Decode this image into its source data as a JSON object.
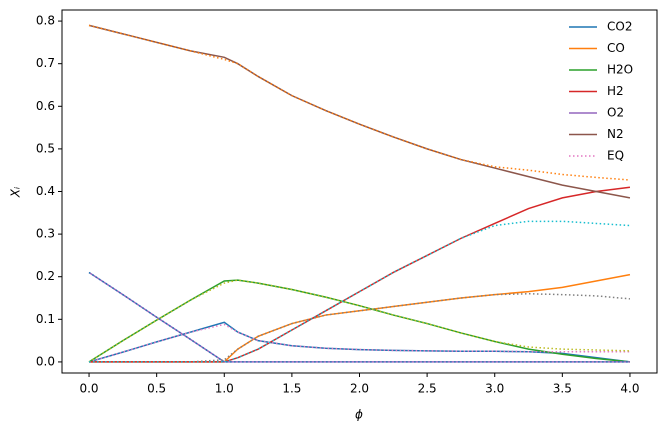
{
  "chart_data": {
    "type": "line",
    "x_label": "ϕ",
    "y_label": "Xᵢ",
    "x": [
      0,
      0.25,
      0.5,
      0.75,
      1.0,
      1.1,
      1.25,
      1.5,
      1.75,
      2.0,
      2.25,
      2.5,
      2.75,
      3.0,
      3.25,
      3.5,
      3.75,
      4.0
    ],
    "series": [
      {
        "name": "CO2",
        "color": "#1f77b4",
        "values": [
          0,
          0.023,
          0.047,
          0.07,
          0.093,
          0.07,
          0.05,
          0.038,
          0.032,
          0.029,
          0.027,
          0.026,
          0.025,
          0.025,
          0.024,
          0.02,
          0.01,
          0
        ]
      },
      {
        "name": "CO",
        "color": "#ff7f0e",
        "values": [
          0,
          0,
          0,
          0,
          0,
          0.03,
          0.06,
          0.09,
          0.11,
          0.12,
          0.13,
          0.14,
          0.15,
          0.158,
          0.165,
          0.175,
          0.19,
          0.205
        ]
      },
      {
        "name": "H2O",
        "color": "#2ca02c",
        "values": [
          0,
          0.05,
          0.098,
          0.145,
          0.19,
          0.192,
          0.185,
          0.17,
          0.152,
          0.132,
          0.11,
          0.09,
          0.068,
          0.048,
          0.03,
          0.018,
          0.008,
          0
        ]
      },
      {
        "name": "H2",
        "color": "#d62728",
        "values": [
          0,
          0,
          0,
          0,
          0,
          0.01,
          0.03,
          0.075,
          0.12,
          0.165,
          0.21,
          0.25,
          0.29,
          0.325,
          0.36,
          0.385,
          0.4,
          0.41
        ]
      },
      {
        "name": "O2",
        "color": "#9467bd",
        "values": [
          0.21,
          0.158,
          0.105,
          0.053,
          0,
          0,
          0,
          0,
          0,
          0,
          0,
          0,
          0,
          0,
          0,
          0,
          0,
          0
        ]
      },
      {
        "name": "N2",
        "color": "#8c564b",
        "values": [
          0.79,
          0.77,
          0.75,
          0.73,
          0.715,
          0.7,
          0.67,
          0.625,
          0.59,
          0.558,
          0.528,
          0.5,
          0.475,
          0.455,
          0.435,
          0.415,
          0.4,
          0.385
        ]
      }
    ],
    "equilibrium": {
      "name": "EQ",
      "style": "dotted",
      "lines": [
        {
          "color": "#e377c2",
          "values": [
            0,
            0.023,
            0.047,
            0.07,
            0.088,
            0.07,
            0.05,
            0.038,
            0.032,
            0.029,
            0.027,
            0.026,
            0.025,
            0.025,
            0.024,
            0.024,
            0.024,
            0.024
          ]
        },
        {
          "color": "#7f7f7f",
          "values": [
            0,
            0,
            0,
            0,
            0.005,
            0.03,
            0.06,
            0.09,
            0.11,
            0.12,
            0.13,
            0.14,
            0.15,
            0.158,
            0.16,
            0.158,
            0.155,
            0.148
          ]
        },
        {
          "color": "#bcbd22",
          "values": [
            0,
            0.05,
            0.098,
            0.145,
            0.185,
            0.192,
            0.185,
            0.17,
            0.152,
            0.132,
            0.11,
            0.09,
            0.068,
            0.048,
            0.035,
            0.03,
            0.028,
            0.026
          ]
        },
        {
          "color": "#17becf",
          "values": [
            0,
            0,
            0,
            0,
            0,
            0.01,
            0.03,
            0.075,
            0.12,
            0.165,
            0.21,
            0.25,
            0.29,
            0.32,
            0.33,
            0.33,
            0.325,
            0.32
          ]
        },
        {
          "color": "#1f77b4",
          "values": [
            0.21,
            0.158,
            0.105,
            0.053,
            0,
            0,
            0,
            0,
            0,
            0,
            0,
            0,
            0,
            0,
            0,
            0,
            0,
            0
          ]
        },
        {
          "color": "#ff7f0e",
          "values": [
            0.79,
            0.77,
            0.75,
            0.73,
            0.71,
            0.7,
            0.67,
            0.625,
            0.59,
            0.558,
            0.528,
            0.5,
            0.475,
            0.458,
            0.45,
            0.44,
            0.433,
            0.427
          ]
        }
      ]
    },
    "xlim": [
      -0.2,
      4.2
    ],
    "xticks": [
      {
        "value": 0,
        "label": "0.0"
      },
      0.5,
      {
        "value": 1,
        "label": "1.0"
      },
      1.5,
      {
        "value": 2,
        "label": "2.0"
      },
      2.5,
      {
        "value": 3,
        "label": "3.0"
      },
      3.5,
      {
        "value": 4,
        "label": "4.0"
      }
    ],
    "ylim": [
      -0.026,
      0.826
    ],
    "yticks": [
      {
        "value": 0,
        "label": "0.0"
      },
      0.1,
      0.2,
      0.3,
      0.4,
      0.5,
      0.6,
      0.7,
      0.8
    ],
    "grid": false,
    "legend": "upper right"
  }
}
